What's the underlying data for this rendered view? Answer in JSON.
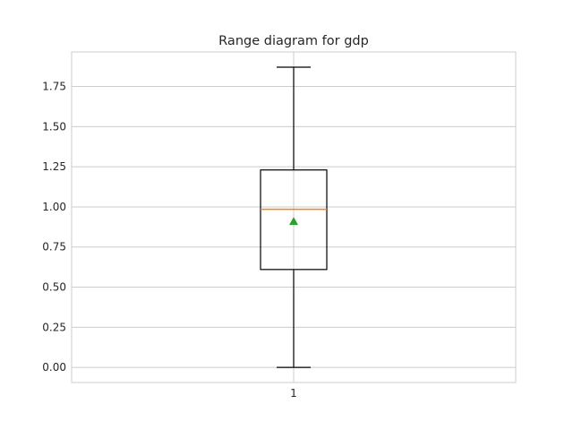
{
  "chart_data": {
    "type": "box",
    "title": "Range diagram for gdp",
    "xlabel": "",
    "ylabel": "",
    "categories": [
      "1"
    ],
    "ylim": [
      -0.094,
      1.965
    ],
    "yticks": [
      0.0,
      0.25,
      0.5,
      0.75,
      1.0,
      1.25,
      1.5,
      1.75
    ],
    "ytick_labels": [
      "0.00",
      "0.25",
      "0.50",
      "0.75",
      "1.00",
      "1.25",
      "1.50",
      "1.75"
    ],
    "grid": true,
    "series": [
      {
        "whisker_low": 0.0,
        "q1": 0.61,
        "median": 0.985,
        "q3": 1.23,
        "whisker_high": 1.87,
        "mean": 0.91
      }
    ],
    "colors": {
      "box": "#000000",
      "median": "#ff7f0e",
      "mean": "#2ca02c",
      "grid": "#cccccc",
      "spine": "#cccccc"
    }
  }
}
